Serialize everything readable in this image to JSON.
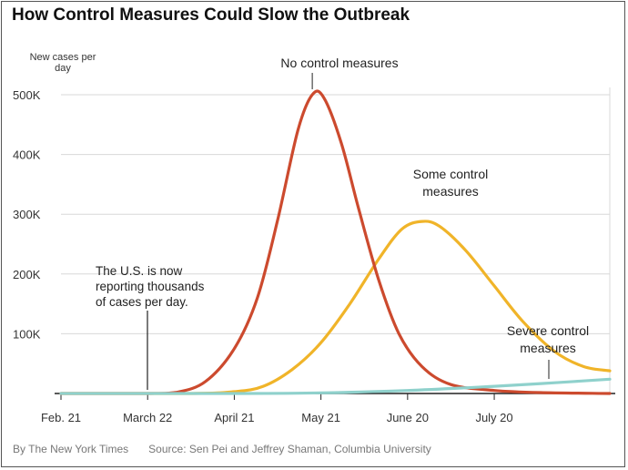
{
  "title": "How Control Measures Could Slow the Outbreak",
  "footer": {
    "credit": "By The New York Times",
    "source": "Source: Sen Pei and Jeffrey Shaman, Columbia University"
  },
  "colors": {
    "no_control": "#cc4a2e",
    "some_control": "#f0b429",
    "severe_control": "#8fd1cc",
    "grid": "#d8d8d8",
    "axis": "#222222"
  },
  "chart_data": {
    "type": "line",
    "ylabel": "New cases per day",
    "ylim": [
      0,
      500000
    ],
    "yticks": [
      100000,
      200000,
      300000,
      400000,
      500000
    ],
    "ytick_labels": [
      "100K",
      "200K",
      "300K",
      "400K",
      "500K"
    ],
    "xlim": [
      "2020-02-21",
      "2020-08-29"
    ],
    "xticks": [
      "2020-02-21",
      "2020-03-22",
      "2020-04-21",
      "2020-05-21",
      "2020-06-20",
      "2020-07-20"
    ],
    "xtick_labels": [
      "Feb. 21",
      "March 22",
      "April 21",
      "May 21",
      "June 20",
      "July 20"
    ],
    "grid": "horizontal",
    "series": [
      {
        "name": "No control measures",
        "color_key": "no_control",
        "points": [
          [
            "2020-02-21",
            0
          ],
          [
            "2020-03-22",
            0
          ],
          [
            "2020-04-01",
            2000
          ],
          [
            "2020-04-11",
            20000
          ],
          [
            "2020-04-21",
            75000
          ],
          [
            "2020-04-29",
            160000
          ],
          [
            "2020-05-06",
            290000
          ],
          [
            "2020-05-13",
            440000
          ],
          [
            "2020-05-18",
            500000
          ],
          [
            "2020-05-22",
            495000
          ],
          [
            "2020-05-28",
            420000
          ],
          [
            "2020-06-03",
            310000
          ],
          [
            "2020-06-10",
            190000
          ],
          [
            "2020-06-17",
            100000
          ],
          [
            "2020-06-25",
            45000
          ],
          [
            "2020-07-05",
            15000
          ],
          [
            "2020-07-20",
            5000
          ],
          [
            "2020-08-05",
            1500
          ],
          [
            "2020-08-29",
            0
          ]
        ]
      },
      {
        "name": "Some control measures",
        "color_key": "some_control",
        "points": [
          [
            "2020-02-21",
            0
          ],
          [
            "2020-04-05",
            0
          ],
          [
            "2020-04-21",
            3000
          ],
          [
            "2020-05-01",
            12000
          ],
          [
            "2020-05-11",
            40000
          ],
          [
            "2020-05-21",
            85000
          ],
          [
            "2020-05-31",
            150000
          ],
          [
            "2020-06-10",
            225000
          ],
          [
            "2020-06-18",
            275000
          ],
          [
            "2020-06-25",
            288000
          ],
          [
            "2020-07-01",
            280000
          ],
          [
            "2020-07-10",
            240000
          ],
          [
            "2020-07-20",
            180000
          ],
          [
            "2020-07-30",
            120000
          ],
          [
            "2020-08-10",
            70000
          ],
          [
            "2020-08-20",
            45000
          ],
          [
            "2020-08-29",
            38000
          ]
        ]
      },
      {
        "name": "Severe control measures",
        "color_key": "severe_control",
        "points": [
          [
            "2020-02-21",
            0
          ],
          [
            "2020-04-21",
            0
          ],
          [
            "2020-05-21",
            1000
          ],
          [
            "2020-06-20",
            5000
          ],
          [
            "2020-07-20",
            12000
          ],
          [
            "2020-08-10",
            18000
          ],
          [
            "2020-08-29",
            24000
          ]
        ]
      }
    ],
    "annotations": [
      {
        "key": "no_control",
        "lines": [
          "No control measures"
        ]
      },
      {
        "key": "some_control",
        "lines": [
          "Some control",
          "measures"
        ]
      },
      {
        "key": "severe_control",
        "lines": [
          "Severe control",
          "measures"
        ]
      },
      {
        "key": "reporting",
        "lines": [
          "The U.S. is now",
          "reporting thousands",
          "of cases per day."
        ]
      }
    ]
  }
}
